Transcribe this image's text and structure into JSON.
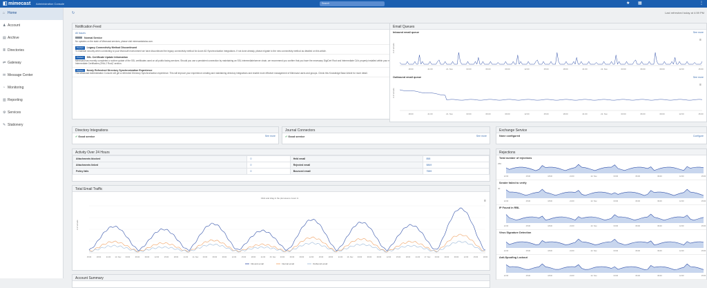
{
  "topbar": {
    "brand": "mimecast",
    "console": "Administration Console",
    "search_placeholder": "Search"
  },
  "sidebar": {
    "items": [
      {
        "label": "Home",
        "icon": "home-icon",
        "glyph": "⌂",
        "active": true
      },
      {
        "label": "Account",
        "icon": "user-icon",
        "glyph": "♟"
      },
      {
        "label": "Archive",
        "icon": "archive-icon",
        "glyph": "▤"
      },
      {
        "label": "Directories",
        "icon": "directories-icon",
        "glyph": "≣"
      },
      {
        "label": "Gateway",
        "icon": "gateway-icon",
        "glyph": "⇄"
      },
      {
        "label": "Message Center",
        "icon": "envelope-icon",
        "glyph": "✉"
      },
      {
        "label": "Monitoring",
        "icon": "monitoring-icon",
        "glyph": "◔"
      },
      {
        "label": "Reporting",
        "icon": "reporting-icon",
        "glyph": "▥"
      },
      {
        "label": "Services",
        "icon": "services-icon",
        "glyph": "⚙"
      },
      {
        "label": "Stationery",
        "icon": "stationery-icon",
        "glyph": "✎"
      }
    ]
  },
  "header": {
    "refresh_glyph": "↻",
    "last_refreshed": "Last refreshed today at 4:59 PM"
  },
  "notification_feed": {
    "title": "Notification Feed",
    "filter": "All Issues",
    "status_link": "Mimecast Status Page",
    "items": [
      {
        "tag": "",
        "title": "Normal Service",
        "date": "Latest services notification",
        "body": "No updates on the state of Mimecast services, please visit mimecaststatus.com.",
        "grey": true
      },
      {
        "tag": "Product",
        "title": "Legacy Connectivity Method Discontinued",
        "date": "Latest product notification",
        "body": "To maintain security when connecting to your Microsoft environment we have discontinued the legacy connectivity method for Azure AD Synchronization integrations. If not done already, please migrate to the new connectivity method as detailed on this article."
      },
      {
        "tag": "Product",
        "title": "SSL Certificate Update Information",
        "date": "Jan 13 9, 2023",
        "body": "Mimecast has recently completed a routine update of the SSL certificates used on all public facing services. Should you use a persistent connection by maintaining an SSL intermediate/server chain, we recommend you confirm that you have the necessary DigiCert Root and Intermediate CA's properly installed within your environment. These are available from within the \"SHA-2 Intermediate Certificates (SHA-2 Root)\" section."
      },
      {
        "tag": "Product",
        "title": "Newly Refreshed Directory Synchronization Experience",
        "date": "September 26, 2022",
        "body": "The Mimecast Administration Console will get a refreshed Directory Synchronization experience. This will improve your experience creating and maintaining directory integrations and enable more effective management of Mimecast users and groups. Check this Knowledge Base Article for more detail."
      }
    ]
  },
  "email_queues": {
    "title": "Email Queues",
    "inbound_title": "Inbound email queue",
    "outbound_title": "Outbound email queue",
    "see_more": "See more",
    "ylabel": "# of emails",
    "x_ticks": [
      "18:00",
      "21:00",
      "21. Nov",
      "03:00",
      "06:00",
      "09:00",
      "12:00",
      "15:00",
      "18:00",
      "21:00",
      "22. Nov",
      "03:00",
      "06:00",
      "09:00",
      "12:00",
      "15:00"
    ]
  },
  "directory_integrations": {
    "title": "Directory Integrations",
    "status": "Good service",
    "link": "See more"
  },
  "journal_connectors": {
    "title": "Journal Connectors",
    "status": "Good service",
    "link": "See more"
  },
  "exchange_service": {
    "title": "Exchange Service",
    "status": "None configured",
    "link": "Configure"
  },
  "activity": {
    "title": "Activity Over 24 Hours",
    "rows": [
      {
        "k1": "Attachments blocked",
        "v1": "0",
        "k2": "Held email",
        "v2": "858"
      },
      {
        "k1": "Attachments linked",
        "v1": "0",
        "k2": "Rejected email",
        "v2": "5869"
      },
      {
        "k1": "Policy fails",
        "v1": "0",
        "k2": "Bounced email",
        "v2": "7589"
      }
    ]
  },
  "traffic": {
    "title": "Total Email Traffic",
    "hint": "Click and drag in the plot area to zoom in",
    "ylabel": "# of emails",
    "legend": [
      "Inbound email",
      "Internal email",
      "Outbound email"
    ],
    "colors": [
      "#2f4fa8",
      "#f0a060",
      "#9ab8d8"
    ],
    "x_ticks": [
      "15:00",
      "18:00",
      "21:00",
      "13. Nov",
      "03:00",
      "06:00",
      "09:00",
      "12:00",
      "15:00",
      "18:00",
      "21:00",
      "14. Nov",
      "03:00",
      "06:00",
      "09:00",
      "12:00",
      "15:00",
      "18:00",
      "21:00",
      "15. Nov",
      "03:00",
      "06:00",
      "09:00",
      "12:00",
      "15:00",
      "18:00",
      "21:00",
      "16. Nov",
      "03:00",
      "06:00",
      "09:00",
      "12:00",
      "15:00",
      "18:00",
      "21:00",
      "17. Nov",
      "03:00",
      "06:00",
      "09:00",
      "12:00",
      "15:00",
      "18:00"
    ]
  },
  "rejections": {
    "title": "Rejections",
    "charts": [
      {
        "title": "Total number of rejections",
        "ymax": "250"
      },
      {
        "title": "Sender failed to verify",
        "ymax": "40"
      },
      {
        "title": "IP Found in RBL",
        "ymax": ""
      },
      {
        "title": "Virus Signature Detection",
        "ymax": ""
      },
      {
        "title": "Anti-Spoofing Lockout",
        "ymax": ""
      }
    ],
    "x_ticks": [
      "12:00",
      "15:00",
      "18:00",
      "21:00",
      "22. Nov",
      "03:00",
      "06:00",
      "09:00",
      "12:00",
      "15:00"
    ]
  },
  "account_summary": {
    "title": "Account Summary"
  }
}
